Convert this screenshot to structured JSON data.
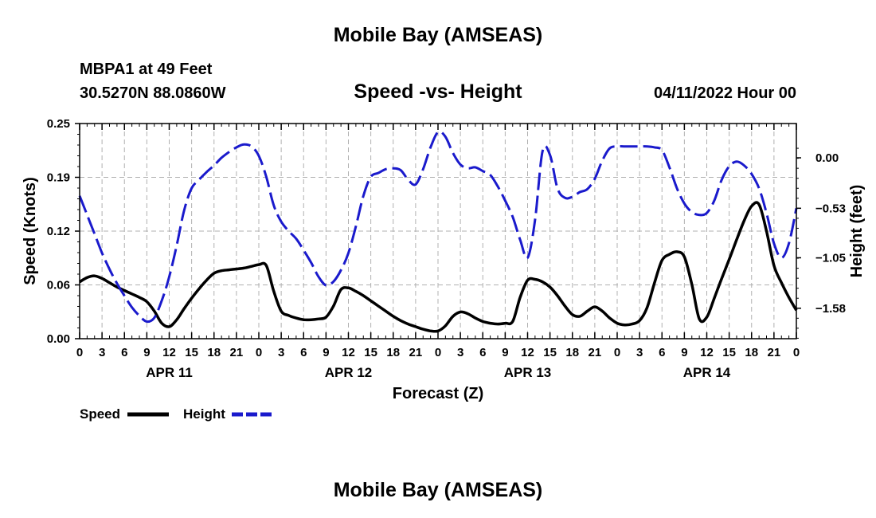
{
  "header": {
    "main_title": "Mobile Bay (AMSEAS)",
    "station": "MBPA1 at 49 Feet",
    "coords": "30.5270N  88.0860W",
    "chart_title": "Speed -vs- Height",
    "date": "04/11/2022 Hour 00"
  },
  "footer": {
    "repeat_title": "Mobile Bay (AMSEAS)"
  },
  "colors": {
    "speed": "#000000",
    "height": "#1a1acc",
    "grid": "#b0b0b0"
  },
  "chart_data": {
    "type": "line",
    "title": "Speed -vs- Height",
    "xlabel": "Forecast (Z)",
    "ylabel": "Speed (Knots)",
    "y2label": "Height (feet)",
    "xlim": [
      0,
      96
    ],
    "ylim": [
      0,
      0.25
    ],
    "y2lim": [
      -1.9,
      0.36
    ],
    "x_ticks": [
      0,
      3,
      6,
      9,
      12,
      15,
      18,
      21,
      24,
      27,
      30,
      33,
      36,
      39,
      42,
      45,
      48,
      51,
      54,
      57,
      60,
      63,
      66,
      69,
      72,
      75,
      78,
      81,
      84,
      87,
      90,
      93,
      96
    ],
    "x_tick_labels": [
      "0",
      "3",
      "6",
      "9",
      "12",
      "15",
      "18",
      "21",
      "0",
      "3",
      "6",
      "9",
      "12",
      "15",
      "18",
      "21",
      "0",
      "3",
      "6",
      "9",
      "12",
      "15",
      "18",
      "21",
      "0",
      "3",
      "6",
      "9",
      "12",
      "15",
      "18",
      "21",
      "0"
    ],
    "day_labels": [
      {
        "x": 12,
        "label": "APR 11"
      },
      {
        "x": 36,
        "label": "APR 12"
      },
      {
        "x": 60,
        "label": "APR 13"
      },
      {
        "x": 84,
        "label": "APR 14"
      }
    ],
    "y_ticks": [
      0,
      0.0625,
      0.125,
      0.1875,
      0.25
    ],
    "y_tick_labels": [
      "0.00",
      "0.06",
      "0.12",
      "0.19",
      "0.25"
    ],
    "y2_ticks": [
      0.0,
      -0.53,
      -1.05,
      -1.58
    ],
    "y2_tick_labels": [
      "0.00",
      "−0.53",
      "−1.05",
      "−1.58"
    ],
    "grid": true,
    "legend": [
      {
        "name": "Speed",
        "style": "solid"
      },
      {
        "name": "Height",
        "style": "dashed"
      }
    ],
    "series": [
      {
        "name": "Speed",
        "axis": "left",
        "x": [
          0,
          1,
          2,
          3,
          4,
          5,
          6,
          7,
          8,
          9,
          10,
          11,
          12,
          13,
          14,
          15,
          16,
          17,
          18,
          19,
          20,
          21,
          22,
          23,
          24,
          25,
          26,
          27,
          28,
          29,
          30,
          31,
          32,
          33,
          34,
          35,
          36,
          37,
          38,
          39,
          40,
          41,
          42,
          43,
          44,
          45,
          46,
          47,
          48,
          49,
          50,
          51,
          52,
          53,
          54,
          55,
          56,
          57,
          58,
          59,
          60,
          61,
          62,
          63,
          64,
          65,
          66,
          67,
          68,
          69,
          70,
          71,
          72,
          73,
          74,
          75,
          76,
          77,
          78,
          79,
          80,
          81,
          82,
          83,
          84,
          85,
          86,
          87,
          88,
          89,
          90,
          91,
          92,
          93,
          94,
          95,
          96
        ],
        "values": [
          0.066,
          0.071,
          0.073,
          0.07,
          0.065,
          0.06,
          0.056,
          0.052,
          0.048,
          0.043,
          0.032,
          0.018,
          0.014,
          0.022,
          0.035,
          0.047,
          0.058,
          0.068,
          0.076,
          0.079,
          0.08,
          0.081,
          0.082,
          0.084,
          0.086,
          0.085,
          0.055,
          0.032,
          0.027,
          0.024,
          0.022,
          0.022,
          0.023,
          0.025,
          0.038,
          0.057,
          0.059,
          0.055,
          0.05,
          0.044,
          0.038,
          0.032,
          0.026,
          0.021,
          0.017,
          0.014,
          0.011,
          0.009,
          0.009,
          0.015,
          0.026,
          0.031,
          0.029,
          0.024,
          0.02,
          0.018,
          0.017,
          0.018,
          0.02,
          0.048,
          0.068,
          0.069,
          0.066,
          0.06,
          0.05,
          0.038,
          0.028,
          0.026,
          0.032,
          0.037,
          0.032,
          0.024,
          0.018,
          0.016,
          0.017,
          0.021,
          0.036,
          0.065,
          0.091,
          0.098,
          0.101,
          0.095,
          0.063,
          0.023,
          0.025,
          0.047,
          0.07,
          0.092,
          0.115,
          0.137,
          0.154,
          0.156,
          0.125,
          0.085,
          0.065,
          0.048,
          0.033
        ]
      },
      {
        "name": "Height",
        "axis": "right",
        "x": [
          0,
          1,
          2,
          3,
          4,
          5,
          6,
          7,
          8,
          9,
          10,
          11,
          12,
          13,
          14,
          15,
          16,
          17,
          18,
          19,
          20,
          21,
          22,
          23,
          24,
          25,
          26,
          27,
          28,
          29,
          30,
          31,
          32,
          33,
          34,
          35,
          36,
          37,
          38,
          39,
          40,
          41,
          42,
          43,
          44,
          45,
          46,
          47,
          48,
          49,
          50,
          51,
          52,
          53,
          54,
          55,
          56,
          57,
          58,
          59,
          60,
          61,
          62,
          63,
          64,
          65,
          66,
          67,
          68,
          69,
          70,
          71,
          72,
          73,
          74,
          75,
          76,
          77,
          78,
          79,
          80,
          81,
          82,
          83,
          84,
          85,
          86,
          87,
          88,
          89,
          90,
          91,
          92,
          93,
          94,
          95,
          96
        ],
        "values": [
          -0.4,
          -0.6,
          -0.8,
          -1.0,
          -1.17,
          -1.32,
          -1.45,
          -1.57,
          -1.66,
          -1.72,
          -1.68,
          -1.5,
          -1.25,
          -0.92,
          -0.55,
          -0.32,
          -0.23,
          -0.15,
          -0.08,
          0.0,
          0.06,
          0.11,
          0.14,
          0.12,
          0.02,
          -0.2,
          -0.5,
          -0.67,
          -0.77,
          -0.85,
          -0.97,
          -1.1,
          -1.25,
          -1.34,
          -1.3,
          -1.18,
          -1.0,
          -0.72,
          -0.4,
          -0.2,
          -0.16,
          -0.12,
          -0.11,
          -0.13,
          -0.23,
          -0.28,
          -0.12,
          0.11,
          0.27,
          0.22,
          0.05,
          -0.07,
          -0.11,
          -0.1,
          -0.14,
          -0.18,
          -0.3,
          -0.45,
          -0.62,
          -0.86,
          -1.05,
          -0.65,
          0.07,
          0.03,
          -0.32,
          -0.42,
          -0.41,
          -0.36,
          -0.33,
          -0.22,
          -0.03,
          0.1,
          0.12,
          0.12,
          0.12,
          0.12,
          0.12,
          0.11,
          0.08,
          -0.1,
          -0.32,
          -0.48,
          -0.57,
          -0.6,
          -0.58,
          -0.45,
          -0.23,
          -0.09,
          -0.04,
          -0.08,
          -0.17,
          -0.32,
          -0.58,
          -0.9,
          -1.05,
          -0.9,
          -0.53
        ]
      }
    ]
  }
}
